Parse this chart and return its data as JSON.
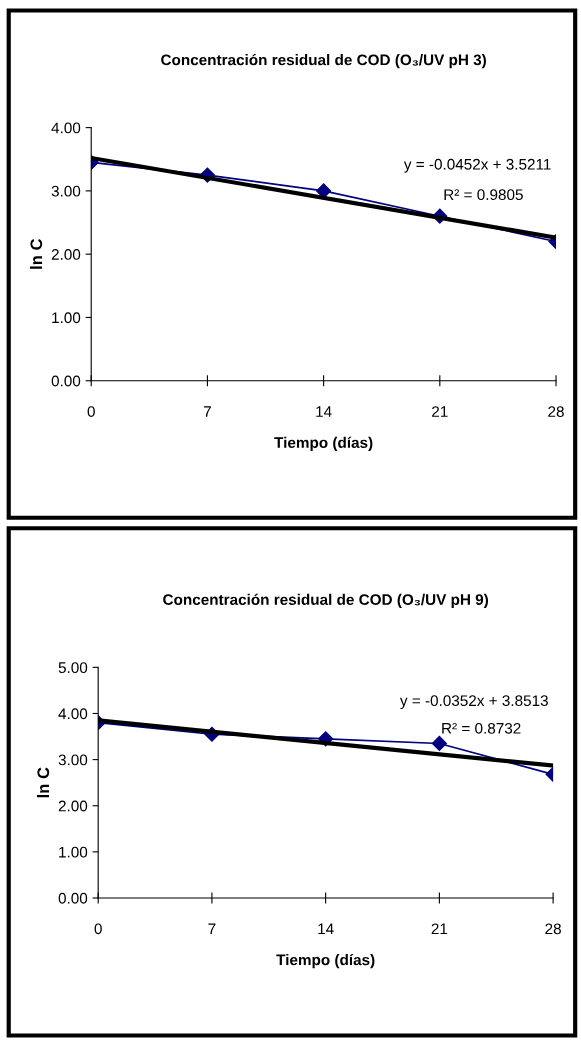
{
  "chart_data": [
    {
      "type": "line",
      "title": "Concentración residual de COD (O₃/UV pH 3)",
      "xlabel": "Tiempo (días)",
      "ylabel": "ln C",
      "xlim": [
        0,
        28
      ],
      "xticks": [
        0,
        7,
        14,
        21,
        28
      ],
      "ylim": [
        0,
        4
      ],
      "yticks": [
        {
          "value": 0,
          "label": "0.00"
        },
        {
          "value": 1,
          "label": "1.00"
        },
        {
          "value": 2,
          "label": "2.00"
        },
        {
          "value": 3,
          "label": "3.00"
        },
        {
          "value": 4,
          "label": "4.00"
        }
      ],
      "grid": false,
      "legend": false,
      "series": [
        {
          "color": "#000080",
          "marker": "diamond",
          "x": [
            0,
            7,
            14,
            21,
            28
          ],
          "values": [
            3.45,
            3.25,
            3.0,
            2.6,
            2.2
          ]
        },
        {
          "color": "#000000",
          "marker": "none",
          "x": [
            0,
            28
          ],
          "values": [
            3.52,
            2.26
          ]
        }
      ],
      "annotations": [
        "y = -0.0452x + 3.5211",
        "R² = 0.9805"
      ]
    },
    {
      "type": "line",
      "title": "Concentración residual de COD (O₃/UV pH 9)",
      "xlabel": "Tiempo (días)",
      "ylabel": "ln C",
      "xlim": [
        0,
        28
      ],
      "xticks": [
        0,
        7,
        14,
        21,
        28
      ],
      "ylim": [
        0,
        5
      ],
      "yticks": [
        {
          "value": 0,
          "label": "0.00"
        },
        {
          "value": 1,
          "label": "1.00"
        },
        {
          "value": 2,
          "label": "2.00"
        },
        {
          "value": 3,
          "label": "3.00"
        },
        {
          "value": 4,
          "label": "4.00"
        },
        {
          "value": 5,
          "label": "5.00"
        }
      ],
      "grid": false,
      "legend": false,
      "series": [
        {
          "color": "#000080",
          "marker": "diamond",
          "x": [
            0,
            7,
            14,
            21,
            28
          ],
          "values": [
            3.8,
            3.55,
            3.45,
            3.35,
            2.68
          ]
        },
        {
          "color": "#000000",
          "marker": "none",
          "x": [
            0,
            28
          ],
          "values": [
            3.85,
            2.87
          ]
        }
      ],
      "annotations": [
        "y = -0.0352x + 3.8513",
        "R² = 0.8732"
      ]
    }
  ]
}
